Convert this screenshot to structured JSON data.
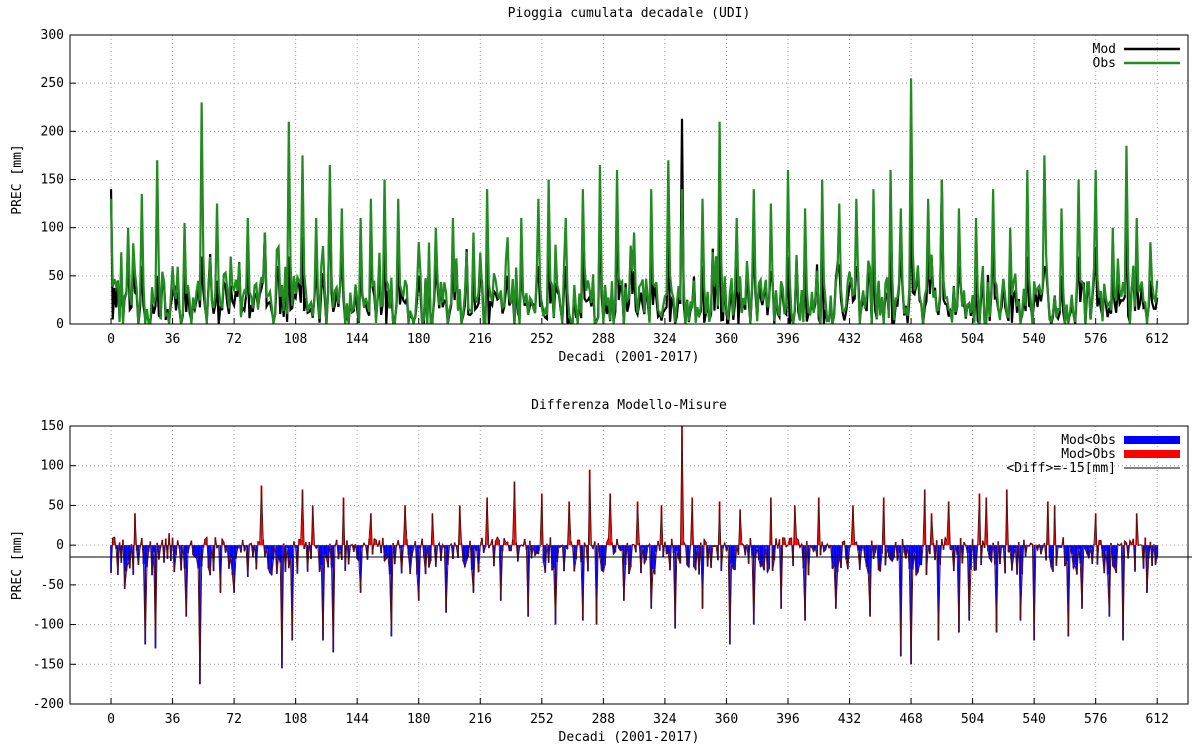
{
  "chart_data": [
    {
      "type": "line",
      "title": "Pioggia cumulata decadale (UDI)",
      "xlabel": "Decadi (2001-2017)",
      "ylabel": "PREC [mm]",
      "xlim": [
        -24,
        630
      ],
      "ylim": [
        0,
        300
      ],
      "xticks": [
        "0",
        "36",
        "72",
        "108",
        "144",
        "180",
        "216",
        "252",
        "288",
        "324",
        "360",
        "396",
        "432",
        "468",
        "504",
        "540",
        "576",
        "612"
      ],
      "yticks": [
        "0",
        "50",
        "100",
        "150",
        "200",
        "250",
        "300"
      ],
      "grid": true,
      "legend_position": "top-right",
      "series": [
        {
          "name": "Mod",
          "color": "#000000"
        },
        {
          "name": "Obs",
          "color": "#228b22"
        }
      ],
      "peaks": {
        "x": [
          0,
          10,
          18,
          27,
          36,
          43,
          53,
          62,
          70,
          80,
          90,
          98,
          104,
          112,
          120,
          128,
          135,
          146,
          152,
          160,
          168,
          180,
          190,
          200,
          212,
          220,
          232,
          240,
          250,
          256,
          266,
          276,
          286,
          296,
          306,
          316,
          326,
          334,
          346,
          356,
          366,
          376,
          386,
          396,
          406,
          416,
          426,
          436,
          446,
          456,
          462,
          468,
          478,
          486,
          496,
          506,
          516,
          526,
          536,
          546,
          556,
          566,
          576,
          586,
          594,
          600,
          608
        ],
        "obs": [
          130,
          100,
          135,
          170,
          60,
          105,
          230,
          125,
          70,
          110,
          95,
          80,
          210,
          175,
          110,
          165,
          120,
          110,
          130,
          150,
          130,
          85,
          100,
          110,
          95,
          140,
          90,
          110,
          130,
          150,
          110,
          140,
          165,
          160,
          95,
          140,
          170,
          140,
          130,
          210,
          110,
          140,
          125,
          160,
          120,
          150,
          125,
          130,
          140,
          160,
          120,
          255,
          130,
          150,
          120,
          110,
          140,
          100,
          160,
          175,
          120,
          150,
          160,
          100,
          185,
          110,
          85
        ],
        "mod": [
          140,
          70,
          60,
          50,
          30,
          55,
          70,
          45,
          40,
          60,
          95,
          60,
          70,
          90,
          60,
          150,
          70,
          60,
          80,
          100,
          70,
          50,
          60,
          60,
          50,
          80,
          50,
          60,
          60,
          80,
          60,
          95,
          120,
          125,
          55,
          70,
          90,
          213,
          60,
          110,
          60,
          80,
          55,
          70,
          60,
          80,
          60,
          60,
          80,
          100,
          70,
          125,
          80,
          150,
          60,
          50,
          90,
          60,
          70,
          60,
          50,
          70,
          80,
          50,
          110,
          60,
          45
        ]
      }
    },
    {
      "type": "area",
      "title": "Differenza Modello-Misure",
      "xlabel": "Decadi (2001-2017)",
      "ylabel": "PREC [mm]",
      "xlim": [
        -24,
        630
      ],
      "ylim": [
        -200,
        150
      ],
      "xticks": [
        "0",
        "36",
        "72",
        "108",
        "144",
        "180",
        "216",
        "252",
        "288",
        "324",
        "360",
        "396",
        "432",
        "468",
        "504",
        "540",
        "576",
        "612"
      ],
      "yticks": [
        "-200",
        "-150",
        "-100",
        "-50",
        "0",
        "50",
        "100",
        "150"
      ],
      "grid": true,
      "legend_position": "top-right",
      "series": [
        {
          "name": "Mod<Obs",
          "color": "#0000ff"
        },
        {
          "name": "Mod>Obs",
          "color": "#ff0000"
        },
        {
          "name": "<Diff>=-15[mm]",
          "color": "#000000",
          "value": -15
        }
      ],
      "peaks": {
        "x": [
          2,
          8,
          14,
          20,
          26,
          34,
          44,
          52,
          56,
          64,
          72,
          80,
          88,
          92,
          100,
          106,
          112,
          118,
          124,
          130,
          136,
          146,
          152,
          164,
          172,
          180,
          188,
          196,
          204,
          212,
          220,
          228,
          236,
          244,
          252,
          260,
          268,
          276,
          280,
          284,
          292,
          300,
          308,
          316,
          322,
          330,
          334,
          340,
          346,
          356,
          362,
          368,
          376,
          386,
          392,
          400,
          406,
          414,
          424,
          434,
          444,
          452,
          462,
          468,
          476,
          480,
          484,
          490,
          496,
          502,
          508,
          512,
          518,
          524,
          532,
          540,
          548,
          552,
          560,
          568,
          576,
          584,
          592,
          600,
          606
        ],
        "diff": [
          10,
          -55,
          40,
          -125,
          -130,
          15,
          -90,
          -175,
          10,
          -60,
          -60,
          -40,
          75,
          -30,
          -155,
          -120,
          70,
          50,
          -120,
          -135,
          60,
          -60,
          40,
          -115,
          50,
          -70,
          40,
          -85,
          50,
          -60,
          60,
          -70,
          80,
          -90,
          65,
          -100,
          55,
          -95,
          95,
          -100,
          65,
          -70,
          55,
          -80,
          50,
          -105,
          150,
          60,
          -80,
          55,
          -125,
          45,
          -100,
          60,
          -80,
          50,
          -95,
          60,
          -80,
          50,
          -90,
          60,
          -140,
          -150,
          70,
          40,
          -120,
          55,
          -110,
          -95,
          65,
          60,
          -110,
          70,
          -95,
          -120,
          55,
          50,
          -115,
          -80,
          40,
          -90,
          -120,
          40,
          -60
        ]
      }
    }
  ]
}
